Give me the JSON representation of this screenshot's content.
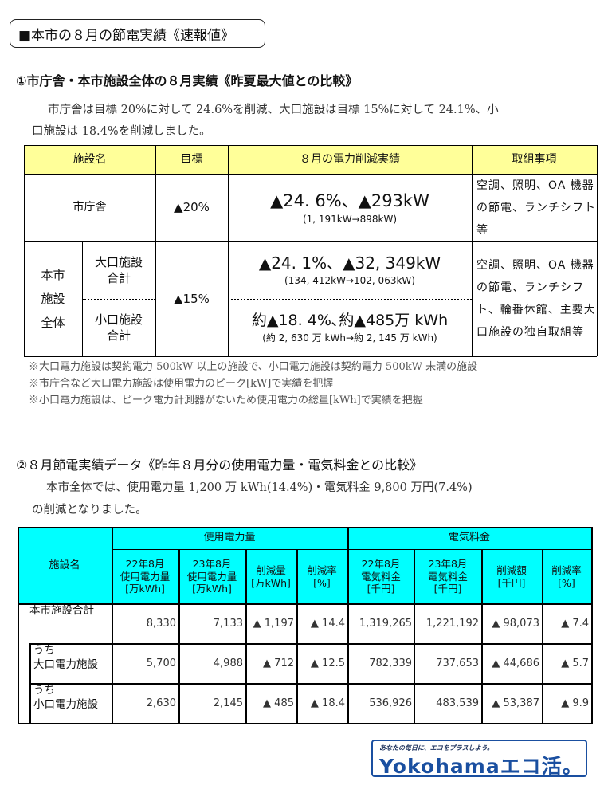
{
  "title": "■本市の８月の節電実績《速報値》",
  "section1": {
    "heading": "①市庁舎・本市施設全体の８月実績《昨夏最大値との比較》",
    "intro_line1": "市庁舎は目標 20%に対して 24.6%を削減、大口施設は目標 15%に対して 24.1%、小",
    "intro_line2": "口施設は 18.4%を削減しました。",
    "table": {
      "headers": [
        "施設名",
        "目標",
        "８月の電力削減実績",
        "取組事項"
      ],
      "city_hall": {
        "name": "市庁舎",
        "target": "▲20%",
        "result": "▲24. 6%、▲293kW",
        "detail": "(1, 191kW→898kW)",
        "actions": "空調、照明、OA 機器の節電、ランチシフト等"
      },
      "group_label": "本市施設全体",
      "group_label_lines": [
        "本市",
        "施設",
        "全体"
      ],
      "group_target": "▲15%",
      "large": {
        "name_lines": [
          "大口施設",
          "合計"
        ],
        "result": "▲24. 1%、▲32, 349kW",
        "detail": "(134, 412kW→102, 063kW)"
      },
      "small": {
        "name_lines": [
          "小口施設",
          "合計"
        ],
        "result": "約▲18. 4%､約▲485万 kWh",
        "detail": "(約 2, 630 万 kWh→約 2, 145 万 kWh)"
      },
      "group_actions": "空調、照明、OA 機器の節電、ランチシフト、輪番休館、主要大口施設の独自取組等"
    },
    "notes": [
      "※大口電力施設は契約電力 500kW 以上の施設で、小口電力施設は契約電力 500kW 未満の施設",
      "※市庁舎など大口電力施設は使用電力のピーク[kW]で実績を把握",
      "※小口電力施設は、ピーク電力計測器がないため使用電力の総量[kWh]で実績を把握"
    ]
  },
  "section2": {
    "heading": "②８月節電実績データ《昨年８月分の使用電力量・電気料金との比較》",
    "intro_line1": "本市全体では、使用電力量 1,200 万 kWh(14.4%)・電気料金 9,800 万円(7.4%)",
    "intro_line2": "の削減となりました。",
    "table": {
      "name_header": "施設名",
      "group_headers": [
        "使用電力量",
        "電気料金"
      ],
      "sub_headers": [
        [
          "22年8月",
          "使用電力量",
          "[万kWh]"
        ],
        [
          "23年8月",
          "使用電力量",
          "[万kWh]"
        ],
        [
          "削減量",
          "[万kWh]"
        ],
        [
          "削減率",
          "[%]"
        ],
        [
          "22年8月",
          "電気料金",
          "[千円]"
        ],
        [
          "23年8月",
          "電気料金",
          "[千円]"
        ],
        [
          "削減額",
          "[千円]"
        ],
        [
          "削減率",
          "[%]"
        ]
      ],
      "rows": [
        {
          "name_lines": [
            "本市施設合計"
          ],
          "values": [
            "8,330",
            "7,133",
            "▲ 1,197",
            "▲ 14.4",
            "1,319,265",
            "1,221,192",
            "▲ 98,073",
            "▲ 7.4"
          ]
        },
        {
          "name_lines": [
            "うち",
            "大口電力施設"
          ],
          "values": [
            "5,700",
            "4,988",
            "▲ 712",
            "▲ 12.5",
            "782,339",
            "737,653",
            "▲ 44,686",
            "▲ 5.7"
          ]
        },
        {
          "name_lines": [
            "うち",
            "小口電力施設"
          ],
          "values": [
            "2,630",
            "2,145",
            "▲ 485",
            "▲ 18.4",
            "536,926",
            "483,539",
            "▲ 53,387",
            "▲ 9.9"
          ]
        }
      ]
    }
  },
  "logo": {
    "tagline": "あなたの毎日に、エコをプラスしよう。",
    "text": "Yokohamaエコ活。",
    "color": "#1a4fa0"
  },
  "colors": {
    "table1_header": "#ffff99",
    "table2_header": "#00ffff"
  }
}
